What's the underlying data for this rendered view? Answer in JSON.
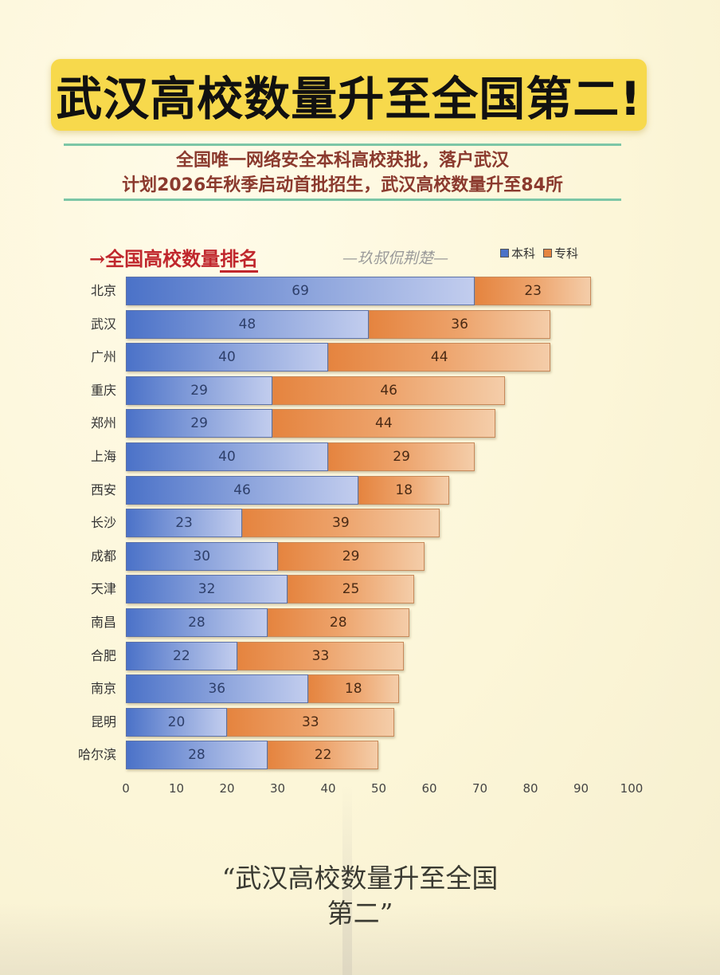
{
  "header": {
    "title": "武汉高校数量升至全国第二!",
    "subtitle_line1": "全国唯一网络安全本科高校获批，落户武汉",
    "subtitle_line2": "计划2026年秋季启动首批招生，武汉高校数量升至84所"
  },
  "chart_header": {
    "arrow": "→",
    "title_main": "全国高校数量",
    "title_underlined": "排名",
    "author": "—玖叔侃荆楚—",
    "legend": [
      {
        "label": "本科",
        "color": "#4b72c8"
      },
      {
        "label": "专科",
        "color": "#e5843f"
      }
    ]
  },
  "footer": {
    "quote_line1": "“武汉高校数量升至全国",
    "quote_line2": "第二”"
  },
  "chart_data": {
    "type": "bar",
    "orientation": "horizontal",
    "stacked": true,
    "title": "全国高校数量排名",
    "xlabel": "",
    "ylabel": "",
    "xlim": [
      0,
      100
    ],
    "x_ticks": [
      0,
      10,
      20,
      30,
      40,
      50,
      60,
      70,
      80,
      90,
      100
    ],
    "grid": false,
    "legend_position": "top-right",
    "categories": [
      "北京",
      "武汉",
      "广州",
      "重庆",
      "郑州",
      "上海",
      "西安",
      "长沙",
      "成都",
      "天津",
      "南昌",
      "合肥",
      "南京",
      "昆明",
      "哈尔滨"
    ],
    "series": [
      {
        "name": "本科",
        "color": "#4b72c8",
        "values": [
          69,
          48,
          40,
          29,
          29,
          40,
          46,
          23,
          30,
          32,
          28,
          22,
          36,
          20,
          28
        ]
      },
      {
        "name": "专科",
        "color": "#e5843f",
        "values": [
          23,
          36,
          44,
          46,
          44,
          29,
          18,
          39,
          29,
          25,
          28,
          33,
          18,
          33,
          22
        ]
      }
    ]
  }
}
